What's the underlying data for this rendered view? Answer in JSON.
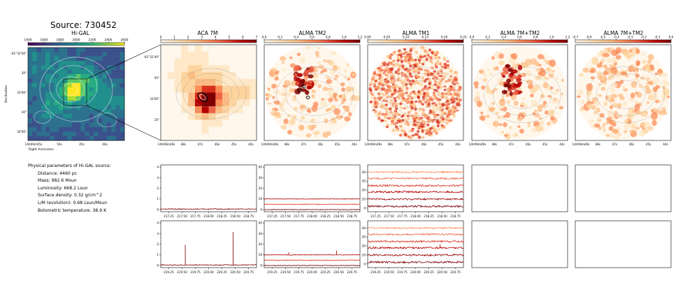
{
  "title": "Source: 730452",
  "panels": [
    {
      "name": "Hi-GAL",
      "cbar_ticks": [
        "1400",
        "1600",
        "1800",
        "2000",
        "2200",
        "2400",
        "2600"
      ],
      "cmap": "viridis"
    },
    {
      "name": "ACA 7M",
      "cbar_ticks": [
        "0",
        "1",
        "2",
        "3",
        "4",
        "5",
        "6",
        "7"
      ],
      "cmap": "reds"
    },
    {
      "name": "ALMA TM2",
      "cbar_ticks": [
        "0.0",
        "0.2",
        "0.4",
        "0.6",
        "0.8",
        "1.0",
        "1.2"
      ],
      "cmap": "reds"
    },
    {
      "name": "ALMA TM1",
      "cbar_ticks": [
        "0.00",
        "0.05",
        "0.10",
        "0.15",
        "0.20",
        "0.25"
      ],
      "cmap": "reds"
    },
    {
      "name": "ALMA 7M+TM2",
      "cbar_ticks": [
        "0.0",
        "0.2",
        "0.4",
        "0.6",
        "0.8",
        "1.0",
        "1.2"
      ],
      "cmap": "reds"
    },
    {
      "name": "ALMA 7M+TM2",
      "cbar_ticks": [
        "-0.7",
        "-0.6",
        "-0.5",
        "-0.4",
        "-0.3",
        "-0.2",
        "-0.1",
        "0.0"
      ],
      "cmap": "reds"
    }
  ],
  "higal_axes": {
    "ylabel": "Declination",
    "xlabel": "Right Ascension",
    "yticks": [
      "-61°32'00\"",
      "30\"",
      "33'00\"",
      "30\"",
      "34'00\""
    ],
    "xticks": [
      "14h09m55s",
      "50s",
      "45s",
      "40s"
    ]
  },
  "aca_axes": {
    "yticks": [
      "-61°32'40\"",
      "50\"",
      "33'00\"",
      "10\""
    ],
    "xticks": [
      "14h09m49s",
      "48s",
      "47s",
      "46s",
      "45s",
      "44s"
    ]
  },
  "alma_xticks": [
    "14h09m49s",
    "48s",
    "47s",
    "46s",
    "45s",
    "44s"
  ],
  "physical_params": {
    "header": "Physical parameters of Hi-GAL source:",
    "items": [
      "Distance: 4460 pc",
      "Mass: 982.6 Msun",
      "Luminosity: 668.2 Lsun",
      "Surface density: 0.32 g/cm^2",
      "L/M (evolution): 0.68 Lsun/Msun",
      "Bolometric temperature: 38.9 K"
    ]
  },
  "chart_data": [
    {
      "type": "line",
      "panel": "ACA 7M spectrum (upper)",
      "x_ticks": [
        "217.25",
        "217.50",
        "217.75",
        "218.00",
        "218.25",
        "218.50",
        "218.75"
      ],
      "xlim": [
        217.1,
        218.9
      ],
      "ylim": [
        -0.2,
        4.2
      ],
      "y_ticks": [
        "0",
        "1",
        "2",
        "3",
        "4"
      ],
      "series": [
        {
          "baseline": 0.05,
          "noise": 0.04,
          "color": "#7f0000"
        }
      ]
    },
    {
      "type": "line",
      "panel": "ALMA TM2 spectrum (upper)",
      "x_ticks": [
        "217.25",
        "217.50",
        "217.75",
        "218.00",
        "218.25",
        "218.50",
        "218.75"
      ],
      "xlim": [
        217.1,
        218.9
      ],
      "ylim": [
        -2,
        42
      ],
      "y_ticks": [
        "0",
        "10",
        "20",
        "30",
        "40"
      ],
      "series": [
        {
          "baseline": 10,
          "noise": 0.3,
          "color": "#b30000"
        },
        {
          "baseline": 5,
          "noise": 0.3,
          "color": "#d7301f"
        },
        {
          "baseline": 0,
          "noise": 0.3,
          "color": "#7f0000"
        }
      ]
    },
    {
      "type": "line",
      "panel": "ALMA TM1 spectrum (upper)",
      "x_ticks": [
        "217.25",
        "217.50",
        "217.75",
        "218.00",
        "218.25",
        "218.50",
        "218.75"
      ],
      "xlim": [
        217.1,
        218.9
      ],
      "ylim": [
        -4,
        48
      ],
      "y_ticks": [
        "0",
        "10",
        "20",
        "30",
        "40"
      ],
      "series": [
        {
          "baseline": 40,
          "noise": 1.0,
          "color": "#fc8d59"
        },
        {
          "baseline": 33,
          "noise": 1.0,
          "color": "#ef6548"
        },
        {
          "baseline": 25,
          "noise": 1.0,
          "color": "#d7301f"
        },
        {
          "baseline": 18,
          "noise": 1.0,
          "color": "#b30000"
        },
        {
          "baseline": 10,
          "noise": 1.0,
          "color": "#990000"
        },
        {
          "baseline": 2,
          "noise": 1.0,
          "color": "#7f0000"
        }
      ]
    },
    {
      "type": "line",
      "panel": "ACA 7M spectrum (lower)",
      "x_ticks": [
        "219.25",
        "219.50",
        "219.75",
        "220.00",
        "220.25",
        "220.50",
        "220.75"
      ],
      "xlim": [
        219.1,
        220.9
      ],
      "ylim": [
        -0.2,
        4.2
      ],
      "y_ticks": [
        "0",
        "1",
        "2",
        "3",
        "4"
      ],
      "series": [
        {
          "baseline": 0.05,
          "noise": 0.04,
          "color": "#7f0000",
          "peaks": [
            [
              219.56,
              1.9
            ],
            [
              220.46,
              3.1
            ]
          ]
        }
      ]
    },
    {
      "type": "line",
      "panel": "ALMA TM2 spectrum (lower)",
      "x_ticks": [
        "219.25",
        "219.50",
        "219.75",
        "220.00",
        "220.25",
        "220.50",
        "220.75"
      ],
      "xlim": [
        219.1,
        220.9
      ],
      "ylim": [
        -2,
        42
      ],
      "y_ticks": [
        "0",
        "10",
        "20",
        "30",
        "40"
      ],
      "series": [
        {
          "baseline": 10,
          "noise": 0.3,
          "color": "#b30000",
          "peaks": [
            [
              219.56,
              2.5
            ],
            [
              220.46,
              4.0
            ]
          ]
        },
        {
          "baseline": 5,
          "noise": 0.3,
          "color": "#d7301f"
        },
        {
          "baseline": 0,
          "noise": 0.3,
          "color": "#7f0000"
        }
      ]
    },
    {
      "type": "line",
      "panel": "ALMA TM1 spectrum (lower)",
      "x_ticks": [
        "219.25",
        "219.50",
        "219.75",
        "220.00",
        "220.25",
        "220.50",
        "220.75"
      ],
      "xlim": [
        219.1,
        220.9
      ],
      "ylim": [
        -4,
        48
      ],
      "y_ticks": [
        "0",
        "10",
        "20",
        "30",
        "40"
      ],
      "series": [
        {
          "baseline": 40,
          "noise": 1.0,
          "color": "#fc8d59"
        },
        {
          "baseline": 33,
          "noise": 1.0,
          "color": "#ef6548"
        },
        {
          "baseline": 25,
          "noise": 1.0,
          "color": "#d7301f"
        },
        {
          "baseline": 18,
          "noise": 1.0,
          "color": "#b30000",
          "peaks": [
            [
              220.46,
              4.0
            ]
          ]
        },
        {
          "baseline": 10,
          "noise": 1.0,
          "color": "#990000"
        },
        {
          "baseline": 2,
          "noise": 1.0,
          "color": "#7f0000"
        }
      ]
    }
  ]
}
